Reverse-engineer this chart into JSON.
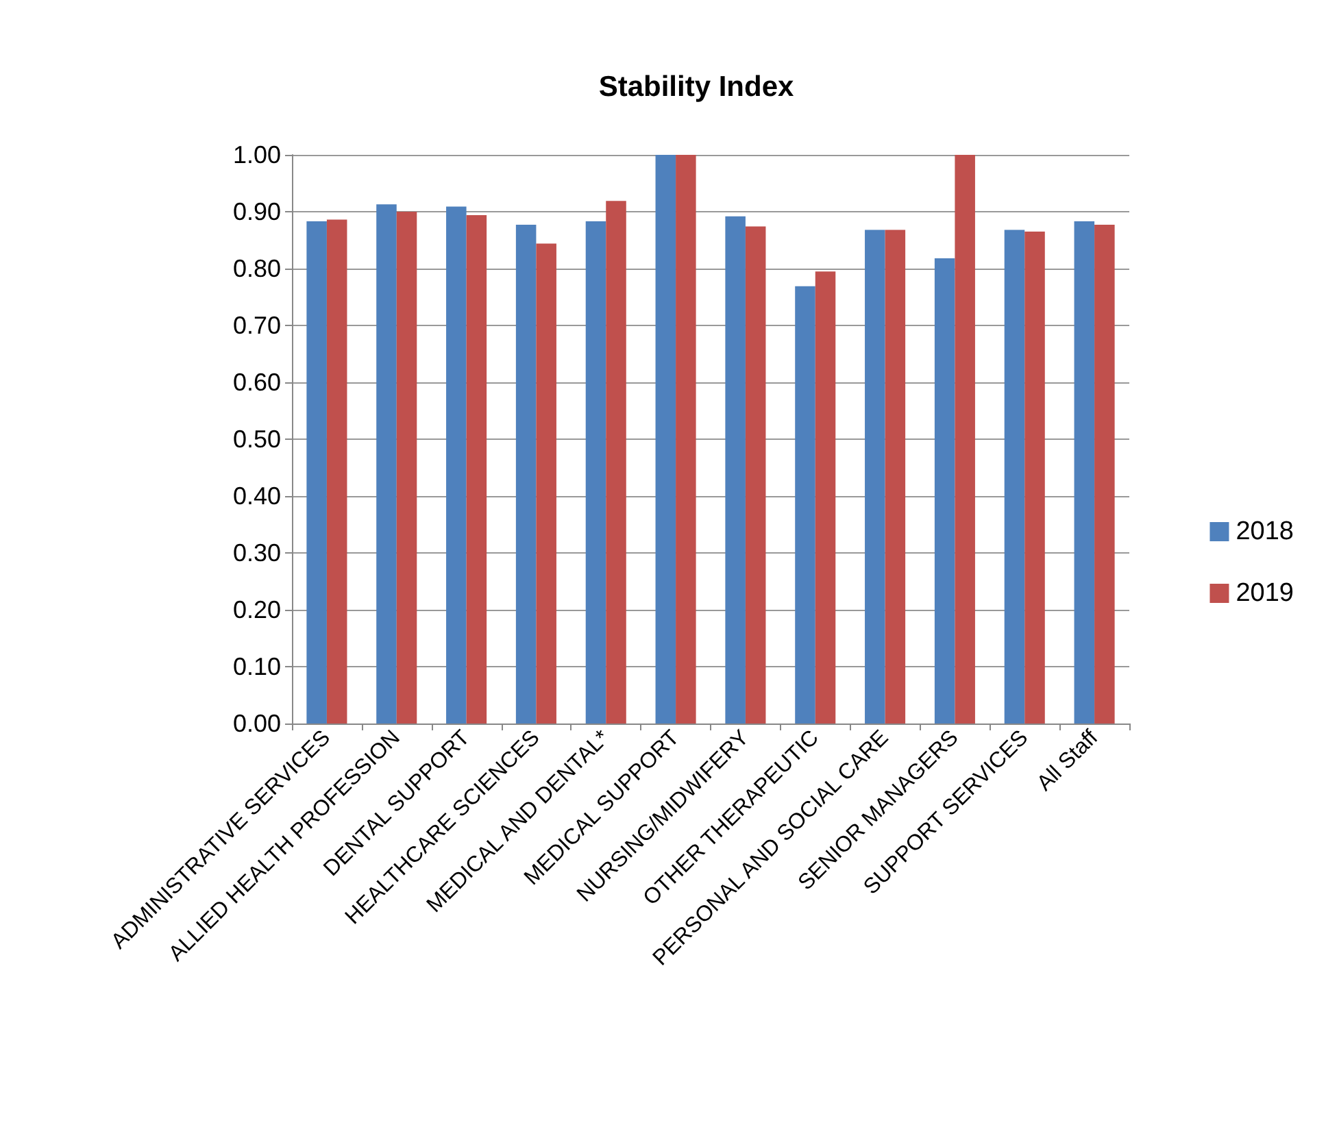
{
  "chart_data": {
    "type": "bar",
    "title": "Stability Index",
    "categories": [
      "ADMINISTRATIVE SERVICES",
      "ALLIED HEALTH PROFESSION",
      "DENTAL SUPPORT",
      "HEALTHCARE SCIENCES",
      "MEDICAL AND DENTAL*",
      "MEDICAL SUPPORT",
      "NURSING/MIDWIFERY",
      "OTHER THERAPEUTIC",
      "PERSONAL AND SOCIAL CARE",
      "SENIOR MANAGERS",
      "SUPPORT SERVICES",
      "All Staff"
    ],
    "series": [
      {
        "name": "2018",
        "color": "#4f81bd",
        "values": [
          0.883,
          0.913,
          0.909,
          0.877,
          0.883,
          1.0,
          0.892,
          0.769,
          0.868,
          0.818,
          0.868,
          0.883
        ]
      },
      {
        "name": "2019",
        "color": "#c0504d",
        "values": [
          0.886,
          0.9,
          0.894,
          0.844,
          0.919,
          1.0,
          0.874,
          0.795,
          0.868,
          1.0,
          0.865,
          0.877
        ]
      }
    ],
    "ylim": [
      0,
      1
    ],
    "yticks": [
      {
        "value": 0,
        "label": "0.00"
      },
      {
        "value": 0.1,
        "label": "0.10"
      },
      {
        "value": 0.2,
        "label": "0.20"
      },
      {
        "value": 0.3,
        "label": "0.30"
      },
      {
        "value": 0.4,
        "label": "0.40"
      },
      {
        "value": 0.5,
        "label": "0.50"
      },
      {
        "value": 0.6,
        "label": "0.60"
      },
      {
        "value": 0.7,
        "label": "0.70"
      },
      {
        "value": 0.8,
        "label": "0.80"
      },
      {
        "value": 0.9,
        "label": "0.90"
      },
      {
        "value": 1,
        "label": "1.00"
      }
    ],
    "grid": true,
    "legend": "right"
  }
}
